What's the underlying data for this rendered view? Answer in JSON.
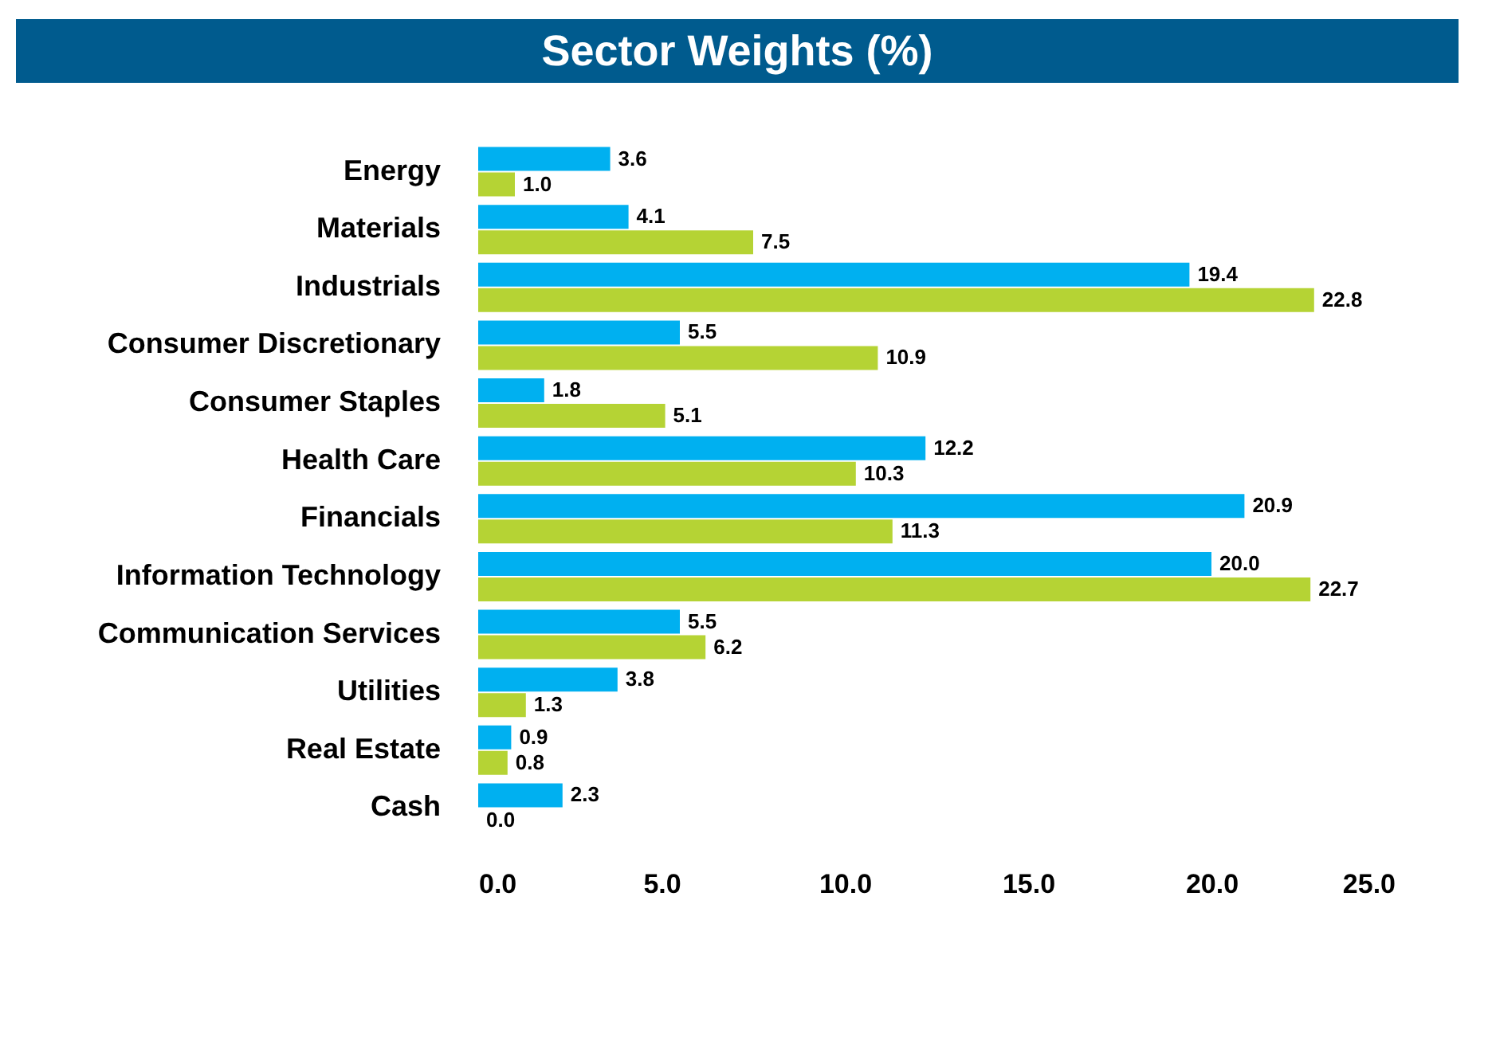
{
  "chart_data": {
    "type": "bar",
    "orientation": "horizontal",
    "title": "Sector Weights (%)",
    "categories": [
      "Energy",
      "Materials",
      "Industrials",
      "Consumer Discretionary",
      "Consumer Staples",
      "Health Care",
      "Financials",
      "Information Technology",
      "Communication Services",
      "Utilities",
      "Real Estate",
      "Cash"
    ],
    "series": [
      {
        "color": "#00b0f0",
        "values": [
          3.6,
          4.1,
          19.4,
          5.5,
          1.8,
          12.2,
          20.9,
          20.0,
          5.5,
          3.8,
          0.9,
          2.3
        ],
        "value_labels": [
          "3.6",
          "4.1",
          "19.4",
          "5.5",
          "1.8",
          "12.2",
          "20.9",
          "20.0",
          "5.5",
          "3.8",
          "0.9",
          "2.3"
        ]
      },
      {
        "color": "#b5d334",
        "values": [
          1.0,
          7.5,
          22.8,
          10.9,
          5.1,
          10.3,
          11.3,
          22.7,
          6.2,
          1.3,
          0.8,
          0.0
        ],
        "value_labels": [
          "1.0",
          "7.5",
          "22.8",
          "10.9",
          "5.1",
          "10.3",
          "11.3",
          "22.7",
          "6.2",
          "1.3",
          "0.8",
          "0.0"
        ]
      }
    ],
    "xlim": [
      0,
      25
    ],
    "xticks": [
      {
        "value": 0,
        "label": "0.0"
      },
      {
        "value": 5,
        "label": "5.0"
      },
      {
        "value": 10,
        "label": "10.0"
      },
      {
        "value": 15,
        "label": "15.0"
      },
      {
        "value": 20,
        "label": "20.0"
      },
      {
        "value": 25,
        "label": "25.0"
      }
    ],
    "grid": false
  }
}
